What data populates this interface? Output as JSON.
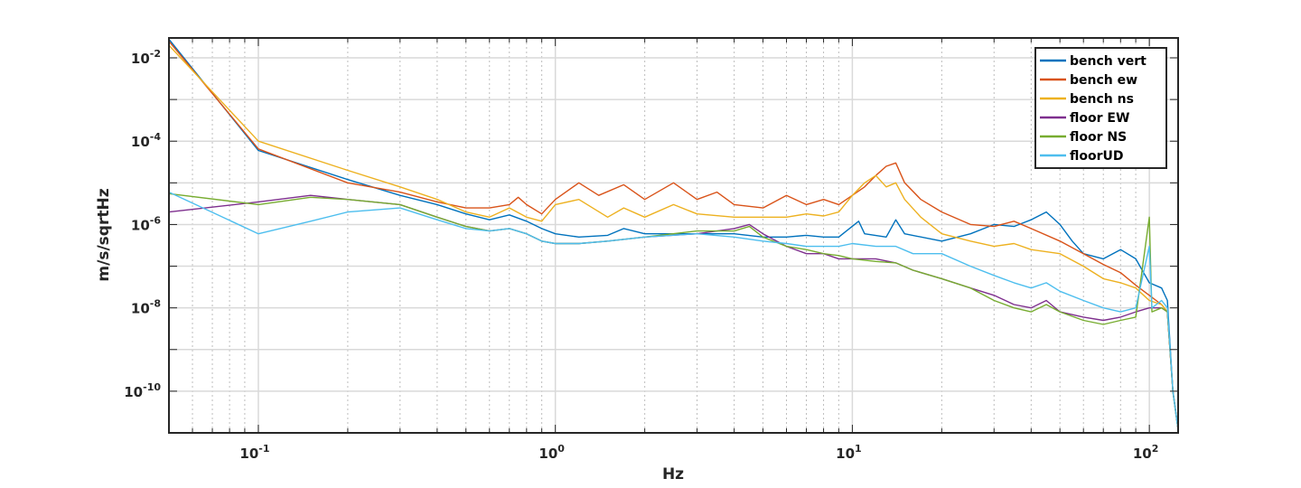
{
  "chart_data": {
    "type": "line",
    "title": "",
    "xlabel": "Hz",
    "ylabel": "m/s/sqrtHz",
    "xscale": "log",
    "yscale": "log",
    "xlim": [
      0.05,
      125
    ],
    "ylim": [
      1e-11,
      0.03
    ],
    "grid": true,
    "legend_position": "top-right",
    "x_ticks": [
      {
        "value": 0.1,
        "label_base": "10",
        "label_exp": "-1"
      },
      {
        "value": 1,
        "label_base": "10",
        "label_exp": "0"
      },
      {
        "value": 10,
        "label_base": "10",
        "label_exp": "1"
      },
      {
        "value": 100,
        "label_base": "10",
        "label_exp": "2"
      }
    ],
    "y_ticks": [
      {
        "value": 1e-10,
        "label_base": "10",
        "label_exp": "-10"
      },
      {
        "value": 1e-08,
        "label_base": "10",
        "label_exp": "-8"
      },
      {
        "value": 1e-06,
        "label_base": "10",
        "label_exp": "-6"
      },
      {
        "value": 0.0001,
        "label_base": "10",
        "label_exp": "-4"
      },
      {
        "value": 0.01,
        "label_base": "10",
        "label_exp": "-2"
      }
    ],
    "series": [
      {
        "name": "bench vert",
        "color": "#0072BD",
        "points": [
          [
            0.05,
            0.028
          ],
          [
            0.1,
            6e-05
          ],
          [
            0.2,
            1.2e-05
          ],
          [
            0.3,
            5e-06
          ],
          [
            0.4,
            3e-06
          ],
          [
            0.5,
            1.8e-06
          ],
          [
            0.6,
            1.3e-06
          ],
          [
            0.7,
            1.7e-06
          ],
          [
            0.8,
            1.2e-06
          ],
          [
            0.9,
            8e-07
          ],
          [
            1.0,
            6e-07
          ],
          [
            1.2,
            5e-07
          ],
          [
            1.5,
            5.5e-07
          ],
          [
            1.7,
            8e-07
          ],
          [
            2,
            6e-07
          ],
          [
            3,
            6e-07
          ],
          [
            4,
            6e-07
          ],
          [
            5,
            5e-07
          ],
          [
            6,
            5e-07
          ],
          [
            7,
            5.5e-07
          ],
          [
            8,
            5e-07
          ],
          [
            9,
            5e-07
          ],
          [
            10.5,
            1.2e-06
          ],
          [
            11,
            6e-07
          ],
          [
            13,
            5e-07
          ],
          [
            14,
            1.3e-06
          ],
          [
            15,
            6e-07
          ],
          [
            20,
            4e-07
          ],
          [
            25,
            6e-07
          ],
          [
            30,
            1e-06
          ],
          [
            35,
            9e-07
          ],
          [
            40,
            1.3e-06
          ],
          [
            45,
            2e-06
          ],
          [
            50,
            1e-06
          ],
          [
            55,
            4e-07
          ],
          [
            60,
            2e-07
          ],
          [
            70,
            1.5e-07
          ],
          [
            80,
            2.5e-07
          ],
          [
            90,
            1.5e-07
          ],
          [
            100,
            4e-08
          ],
          [
            110,
            3e-08
          ],
          [
            115,
            1.5e-08
          ],
          [
            120,
            1e-10
          ],
          [
            125,
            1.2e-11
          ]
        ]
      },
      {
        "name": "bench ew",
        "color": "#D95319",
        "points": [
          [
            0.05,
            0.025
          ],
          [
            0.1,
            6.5e-05
          ],
          [
            0.2,
            1e-05
          ],
          [
            0.3,
            6e-06
          ],
          [
            0.4,
            3.5e-06
          ],
          [
            0.5,
            2.5e-06
          ],
          [
            0.6,
            2.5e-06
          ],
          [
            0.7,
            3e-06
          ],
          [
            0.75,
            4.5e-06
          ],
          [
            0.8,
            3e-06
          ],
          [
            0.9,
            1.8e-06
          ],
          [
            1.0,
            4e-06
          ],
          [
            1.2,
            1e-05
          ],
          [
            1.4,
            5e-06
          ],
          [
            1.7,
            9e-06
          ],
          [
            2,
            4e-06
          ],
          [
            2.5,
            1e-05
          ],
          [
            3,
            4e-06
          ],
          [
            3.5,
            6e-06
          ],
          [
            4,
            3e-06
          ],
          [
            5,
            2.5e-06
          ],
          [
            6,
            5e-06
          ],
          [
            7,
            3e-06
          ],
          [
            8,
            4e-06
          ],
          [
            9,
            3e-06
          ],
          [
            10,
            5e-06
          ],
          [
            11,
            8e-06
          ],
          [
            12,
            1.5e-05
          ],
          [
            13,
            2.5e-05
          ],
          [
            14,
            3e-05
          ],
          [
            15,
            1e-05
          ],
          [
            17,
            4e-06
          ],
          [
            20,
            2e-06
          ],
          [
            25,
            1e-06
          ],
          [
            30,
            9e-07
          ],
          [
            35,
            1.2e-06
          ],
          [
            40,
            8e-07
          ],
          [
            50,
            4e-07
          ],
          [
            60,
            2e-07
          ],
          [
            70,
            1.1e-07
          ],
          [
            80,
            7e-08
          ],
          [
            90,
            3.5e-08
          ],
          [
            100,
            2e-08
          ],
          [
            110,
            1.2e-08
          ],
          [
            115,
            8e-09
          ],
          [
            120,
            1e-10
          ],
          [
            125,
            1.2e-11
          ]
        ]
      },
      {
        "name": "bench ns",
        "color": "#EDB120",
        "points": [
          [
            0.05,
            0.02
          ],
          [
            0.1,
            0.0001
          ],
          [
            0.2,
            2e-05
          ],
          [
            0.3,
            8e-06
          ],
          [
            0.4,
            4e-06
          ],
          [
            0.5,
            2e-06
          ],
          [
            0.6,
            1.5e-06
          ],
          [
            0.7,
            2.5e-06
          ],
          [
            0.8,
            1.5e-06
          ],
          [
            0.9,
            1.2e-06
          ],
          [
            1.0,
            3e-06
          ],
          [
            1.2,
            4e-06
          ],
          [
            1.5,
            1.5e-06
          ],
          [
            1.7,
            2.5e-06
          ],
          [
            2,
            1.5e-06
          ],
          [
            2.5,
            3e-06
          ],
          [
            3,
            1.8e-06
          ],
          [
            4,
            1.5e-06
          ],
          [
            5,
            1.5e-06
          ],
          [
            6,
            1.5e-06
          ],
          [
            7,
            1.8e-06
          ],
          [
            8,
            1.6e-06
          ],
          [
            9,
            2e-06
          ],
          [
            10,
            5e-06
          ],
          [
            11,
            1e-05
          ],
          [
            12,
            1.5e-05
          ],
          [
            13,
            8e-06
          ],
          [
            14,
            1e-05
          ],
          [
            15,
            4e-06
          ],
          [
            17,
            1.5e-06
          ],
          [
            20,
            6e-07
          ],
          [
            25,
            4e-07
          ],
          [
            30,
            3e-07
          ],
          [
            35,
            3.5e-07
          ],
          [
            40,
            2.5e-07
          ],
          [
            50,
            2e-07
          ],
          [
            60,
            1e-07
          ],
          [
            70,
            5e-08
          ],
          [
            80,
            4e-08
          ],
          [
            90,
            3e-08
          ],
          [
            100,
            1.5e-08
          ],
          [
            110,
            1.2e-08
          ],
          [
            115,
            8e-09
          ],
          [
            120,
            1e-10
          ],
          [
            125,
            1.2e-11
          ]
        ]
      },
      {
        "name": "floor EW",
        "color": "#7E2F8E",
        "points": [
          [
            0.05,
            2e-06
          ],
          [
            0.1,
            3.5e-06
          ],
          [
            0.15,
            5e-06
          ],
          [
            0.2,
            4e-06
          ],
          [
            0.3,
            3e-06
          ],
          [
            0.4,
            1.5e-06
          ],
          [
            0.5,
            9e-07
          ],
          [
            0.6,
            7e-07
          ],
          [
            0.7,
            8e-07
          ],
          [
            0.8,
            6e-07
          ],
          [
            0.9,
            4e-07
          ],
          [
            1.0,
            3.5e-07
          ],
          [
            1.2,
            3.5e-07
          ],
          [
            1.5,
            4e-07
          ],
          [
            2,
            5e-07
          ],
          [
            3,
            6e-07
          ],
          [
            4,
            8e-07
          ],
          [
            4.5,
            1e-06
          ],
          [
            5,
            6e-07
          ],
          [
            6,
            3e-07
          ],
          [
            7,
            2e-07
          ],
          [
            8,
            2e-07
          ],
          [
            9,
            1.5e-07
          ],
          [
            10,
            1.5e-07
          ],
          [
            12,
            1.5e-07
          ],
          [
            14,
            1.2e-07
          ],
          [
            16,
            8e-08
          ],
          [
            20,
            5e-08
          ],
          [
            25,
            3e-08
          ],
          [
            30,
            2e-08
          ],
          [
            35,
            1.2e-08
          ],
          [
            40,
            1e-08
          ],
          [
            45,
            1.5e-08
          ],
          [
            50,
            8e-09
          ],
          [
            60,
            6e-09
          ],
          [
            70,
            5e-09
          ],
          [
            80,
            6e-09
          ],
          [
            90,
            8e-09
          ],
          [
            100,
            1e-08
          ],
          [
            110,
            1e-08
          ],
          [
            115,
            8e-09
          ],
          [
            120,
            1e-10
          ],
          [
            125,
            1.2e-11
          ]
        ]
      },
      {
        "name": "floor NS",
        "color": "#77AC30",
        "points": [
          [
            0.05,
            5.5e-06
          ],
          [
            0.1,
            3e-06
          ],
          [
            0.15,
            4.5e-06
          ],
          [
            0.2,
            4e-06
          ],
          [
            0.3,
            3e-06
          ],
          [
            0.4,
            1.5e-06
          ],
          [
            0.5,
            9e-07
          ],
          [
            0.6,
            7e-07
          ],
          [
            0.7,
            8e-07
          ],
          [
            0.8,
            6e-07
          ],
          [
            0.9,
            4e-07
          ],
          [
            1.0,
            3.5e-07
          ],
          [
            1.2,
            3.5e-07
          ],
          [
            1.5,
            4e-07
          ],
          [
            2,
            5e-07
          ],
          [
            3,
            7e-07
          ],
          [
            4,
            7e-07
          ],
          [
            4.5,
            9e-07
          ],
          [
            5,
            5e-07
          ],
          [
            6,
            3e-07
          ],
          [
            7,
            2.5e-07
          ],
          [
            8,
            2e-07
          ],
          [
            9,
            1.8e-07
          ],
          [
            10,
            1.5e-07
          ],
          [
            12,
            1.3e-07
          ],
          [
            14,
            1.2e-07
          ],
          [
            16,
            8e-08
          ],
          [
            20,
            5e-08
          ],
          [
            25,
            3e-08
          ],
          [
            30,
            1.5e-08
          ],
          [
            35,
            1e-08
          ],
          [
            40,
            8e-09
          ],
          [
            45,
            1.2e-08
          ],
          [
            50,
            8e-09
          ],
          [
            60,
            5e-09
          ],
          [
            70,
            4e-09
          ],
          [
            80,
            5e-09
          ],
          [
            90,
            6e-09
          ],
          [
            100,
            1.5e-06
          ],
          [
            102,
            8e-09
          ],
          [
            110,
            1e-08
          ],
          [
            115,
            8e-09
          ],
          [
            120,
            1e-10
          ],
          [
            125,
            1.2e-11
          ]
        ]
      },
      {
        "name": "floorUD",
        "color": "#4DBEEE",
        "points": [
          [
            0.05,
            6e-06
          ],
          [
            0.1,
            6e-07
          ],
          [
            0.15,
            1.2e-06
          ],
          [
            0.2,
            2e-06
          ],
          [
            0.3,
            2.5e-06
          ],
          [
            0.4,
            1.3e-06
          ],
          [
            0.5,
            8e-07
          ],
          [
            0.6,
            7e-07
          ],
          [
            0.7,
            8e-07
          ],
          [
            0.8,
            6e-07
          ],
          [
            0.9,
            4e-07
          ],
          [
            1.0,
            3.5e-07
          ],
          [
            1.2,
            3.5e-07
          ],
          [
            1.5,
            4e-07
          ],
          [
            2,
            5e-07
          ],
          [
            3,
            6e-07
          ],
          [
            4,
            5e-07
          ],
          [
            5,
            4e-07
          ],
          [
            6,
            3.5e-07
          ],
          [
            7,
            3e-07
          ],
          [
            8,
            3e-07
          ],
          [
            9,
            3e-07
          ],
          [
            10,
            3.5e-07
          ],
          [
            12,
            3e-07
          ],
          [
            14,
            3e-07
          ],
          [
            16,
            2e-07
          ],
          [
            20,
            2e-07
          ],
          [
            25,
            1e-07
          ],
          [
            30,
            6e-08
          ],
          [
            35,
            4e-08
          ],
          [
            40,
            3e-08
          ],
          [
            45,
            4e-08
          ],
          [
            50,
            2.5e-08
          ],
          [
            60,
            1.5e-08
          ],
          [
            70,
            1e-08
          ],
          [
            80,
            8e-09
          ],
          [
            90,
            1e-08
          ],
          [
            100,
            3e-07
          ],
          [
            102,
            1e-08
          ],
          [
            110,
            1.5e-08
          ],
          [
            115,
            1e-08
          ],
          [
            120,
            1e-10
          ],
          [
            125,
            1.2e-11
          ]
        ]
      }
    ]
  }
}
